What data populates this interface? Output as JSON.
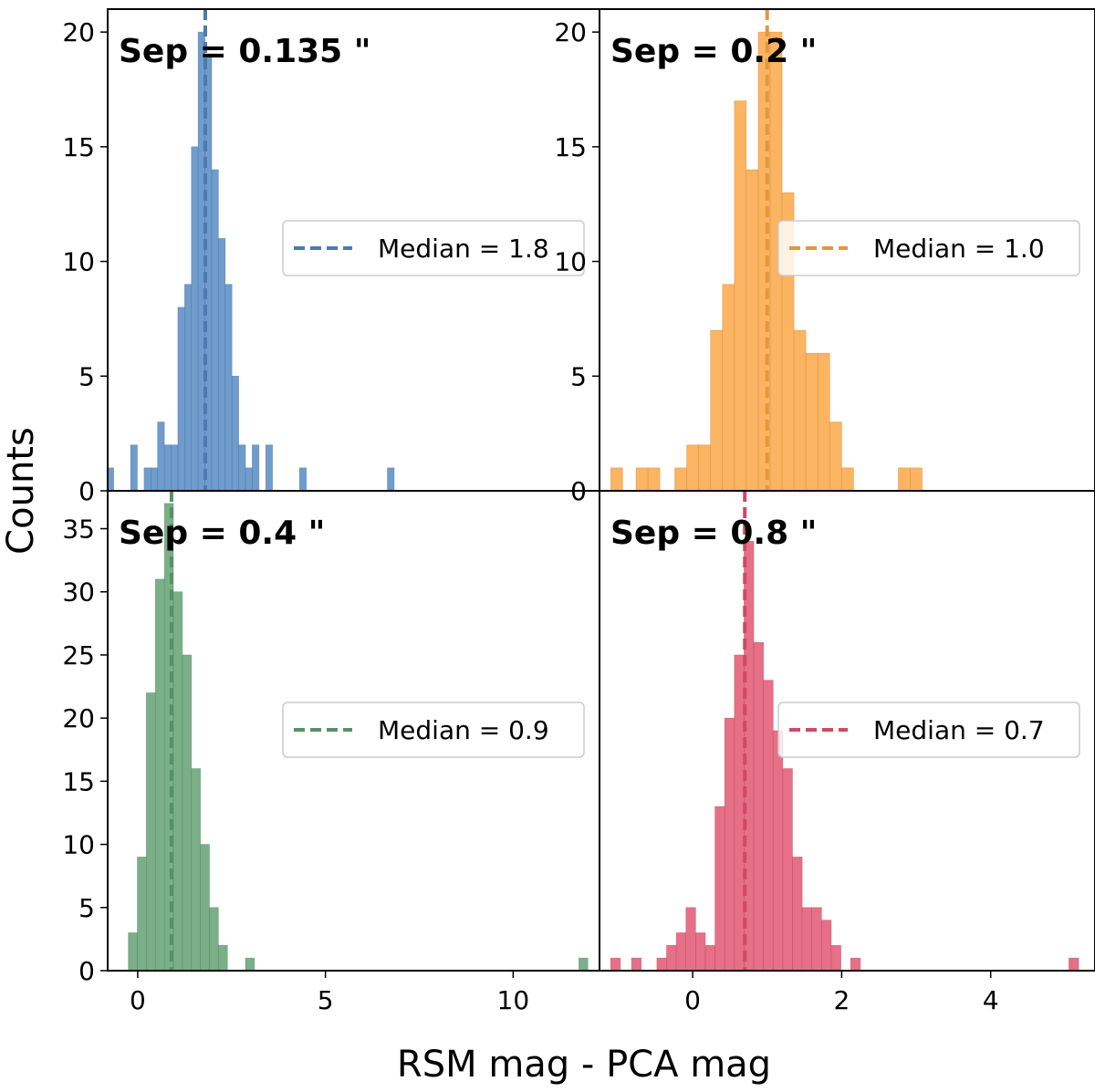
{
  "figure": {
    "ylabel": "Counts",
    "xlabel": "RSM mag - PCA mag"
  },
  "chart_data": [
    {
      "type": "bar",
      "panel": "top-left",
      "annotation": "Sep = 0.135 \"",
      "legend": "Median = 1.8",
      "legend_position": "center-right",
      "color": "#4f86c0",
      "median": 1.8,
      "xlim": [
        -0.8,
        12.3
      ],
      "ylim": [
        0,
        21
      ],
      "yticks": [
        0,
        5,
        10,
        15,
        20
      ],
      "xticks": [],
      "bins": [
        {
          "x0": -0.82,
          "x1": -0.64,
          "count": 1
        },
        {
          "x0": -0.19,
          "x1": -0.01,
          "count": 2
        },
        {
          "x0": 0.17,
          "x1": 0.35,
          "count": 1
        },
        {
          "x0": 0.35,
          "x1": 0.53,
          "count": 1
        },
        {
          "x0": 0.53,
          "x1": 0.71,
          "count": 3
        },
        {
          "x0": 0.71,
          "x1": 0.89,
          "count": 2
        },
        {
          "x0": 0.89,
          "x1": 1.07,
          "count": 2
        },
        {
          "x0": 1.07,
          "x1": 1.25,
          "count": 8
        },
        {
          "x0": 1.25,
          "x1": 1.43,
          "count": 9
        },
        {
          "x0": 1.43,
          "x1": 1.61,
          "count": 15
        },
        {
          "x0": 1.61,
          "x1": 1.79,
          "count": 20
        },
        {
          "x0": 1.79,
          "x1": 1.97,
          "count": 19
        },
        {
          "x0": 1.97,
          "x1": 2.15,
          "count": 14
        },
        {
          "x0": 2.15,
          "x1": 2.33,
          "count": 11
        },
        {
          "x0": 2.33,
          "x1": 2.51,
          "count": 9
        },
        {
          "x0": 2.51,
          "x1": 2.69,
          "count": 5
        },
        {
          "x0": 2.69,
          "x1": 2.87,
          "count": 2
        },
        {
          "x0": 2.87,
          "x1": 3.05,
          "count": 1
        },
        {
          "x0": 3.05,
          "x1": 3.23,
          "count": 2
        },
        {
          "x0": 3.41,
          "x1": 3.59,
          "count": 2
        },
        {
          "x0": 4.31,
          "x1": 4.49,
          "count": 1
        },
        {
          "x0": 6.65,
          "x1": 6.83,
          "count": 1
        }
      ]
    },
    {
      "type": "bar",
      "panel": "top-right",
      "annotation": "Sep = 0.2 \"",
      "legend": "Median = 1.0",
      "legend_position": "center-right",
      "color": "#f9a43f",
      "median": 1.0,
      "xlim": [
        -1.25,
        5.4
      ],
      "ylim": [
        0,
        21
      ],
      "yticks": [
        0,
        5,
        10,
        15,
        20
      ],
      "xticks": [],
      "bins": [
        {
          "x0": -1.1,
          "x1": -0.94,
          "count": 1
        },
        {
          "x0": -0.76,
          "x1": -0.6,
          "count": 1
        },
        {
          "x0": -0.6,
          "x1": -0.44,
          "count": 1
        },
        {
          "x0": -0.24,
          "x1": -0.08,
          "count": 1
        },
        {
          "x0": -0.08,
          "x1": 0.08,
          "count": 2
        },
        {
          "x0": 0.08,
          "x1": 0.24,
          "count": 2
        },
        {
          "x0": 0.24,
          "x1": 0.4,
          "count": 7
        },
        {
          "x0": 0.4,
          "x1": 0.56,
          "count": 9
        },
        {
          "x0": 0.56,
          "x1": 0.72,
          "count": 17
        },
        {
          "x0": 0.72,
          "x1": 0.88,
          "count": 14
        },
        {
          "x0": 0.88,
          "x1": 1.04,
          "count": 20
        },
        {
          "x0": 1.04,
          "x1": 1.2,
          "count": 20
        },
        {
          "x0": 1.2,
          "x1": 1.36,
          "count": 13
        },
        {
          "x0": 1.36,
          "x1": 1.52,
          "count": 7
        },
        {
          "x0": 1.52,
          "x1": 1.68,
          "count": 6
        },
        {
          "x0": 1.68,
          "x1": 1.84,
          "count": 6
        },
        {
          "x0": 1.84,
          "x1": 2.0,
          "count": 3
        },
        {
          "x0": 2.0,
          "x1": 2.16,
          "count": 1
        },
        {
          "x0": 2.76,
          "x1": 2.92,
          "count": 1
        },
        {
          "x0": 2.92,
          "x1": 3.08,
          "count": 1
        }
      ]
    },
    {
      "type": "bar",
      "panel": "bottom-left",
      "annotation": "Sep = 0.4 \"",
      "legend": "Median = 0.9",
      "legend_position": "center-right",
      "color": "#5e9e6e",
      "median": 0.9,
      "xlim": [
        -0.8,
        12.3
      ],
      "ylim": [
        0,
        38
      ],
      "yticks": [
        0,
        5,
        10,
        15,
        20,
        25,
        30,
        35
      ],
      "xticks": [
        0,
        5,
        10
      ],
      "bins": [
        {
          "x0": -0.25,
          "x1": -0.01,
          "count": 3
        },
        {
          "x0": -0.01,
          "x1": 0.23,
          "count": 9
        },
        {
          "x0": 0.23,
          "x1": 0.47,
          "count": 22
        },
        {
          "x0": 0.47,
          "x1": 0.71,
          "count": 31
        },
        {
          "x0": 0.71,
          "x1": 0.95,
          "count": 37
        },
        {
          "x0": 0.95,
          "x1": 1.19,
          "count": 30
        },
        {
          "x0": 1.19,
          "x1": 1.43,
          "count": 25
        },
        {
          "x0": 1.43,
          "x1": 1.67,
          "count": 16
        },
        {
          "x0": 1.67,
          "x1": 1.91,
          "count": 10
        },
        {
          "x0": 1.91,
          "x1": 2.15,
          "count": 5
        },
        {
          "x0": 2.15,
          "x1": 2.39,
          "count": 2
        },
        {
          "x0": 2.87,
          "x1": 3.11,
          "count": 1
        },
        {
          "x0": 11.75,
          "x1": 11.99,
          "count": 1
        }
      ]
    },
    {
      "type": "bar",
      "panel": "bottom-right",
      "annotation": "Sep = 0.8 \"",
      "legend": "Median = 0.7",
      "legend_position": "center-right",
      "color": "#e0506c",
      "median": 0.7,
      "xlim": [
        -1.25,
        5.4
      ],
      "ylim": [
        0,
        38
      ],
      "yticks": [],
      "xticks": [
        0,
        2,
        4
      ],
      "bins": [
        {
          "x0": -1.1,
          "x1": -0.97,
          "count": 1
        },
        {
          "x0": -0.82,
          "x1": -0.69,
          "count": 1
        },
        {
          "x0": -0.48,
          "x1": -0.35,
          "count": 1
        },
        {
          "x0": -0.35,
          "x1": -0.22,
          "count": 2
        },
        {
          "x0": -0.22,
          "x1": -0.09,
          "count": 3
        },
        {
          "x0": -0.09,
          "x1": 0.04,
          "count": 5
        },
        {
          "x0": 0.04,
          "x1": 0.17,
          "count": 3
        },
        {
          "x0": 0.17,
          "x1": 0.3,
          "count": 2
        },
        {
          "x0": 0.3,
          "x1": 0.43,
          "count": 13
        },
        {
          "x0": 0.43,
          "x1": 0.56,
          "count": 20
        },
        {
          "x0": 0.56,
          "x1": 0.69,
          "count": 25
        },
        {
          "x0": 0.69,
          "x1": 0.82,
          "count": 34
        },
        {
          "x0": 0.82,
          "x1": 0.95,
          "count": 26
        },
        {
          "x0": 0.95,
          "x1": 1.08,
          "count": 23
        },
        {
          "x0": 1.08,
          "x1": 1.21,
          "count": 19
        },
        {
          "x0": 1.21,
          "x1": 1.34,
          "count": 16
        },
        {
          "x0": 1.34,
          "x1": 1.47,
          "count": 9
        },
        {
          "x0": 1.47,
          "x1": 1.6,
          "count": 5
        },
        {
          "x0": 1.6,
          "x1": 1.73,
          "count": 5
        },
        {
          "x0": 1.73,
          "x1": 1.86,
          "count": 4
        },
        {
          "x0": 1.86,
          "x1": 1.99,
          "count": 2
        },
        {
          "x0": 2.12,
          "x1": 2.25,
          "count": 1
        },
        {
          "x0": 5.05,
          "x1": 5.18,
          "count": 1
        }
      ]
    }
  ]
}
